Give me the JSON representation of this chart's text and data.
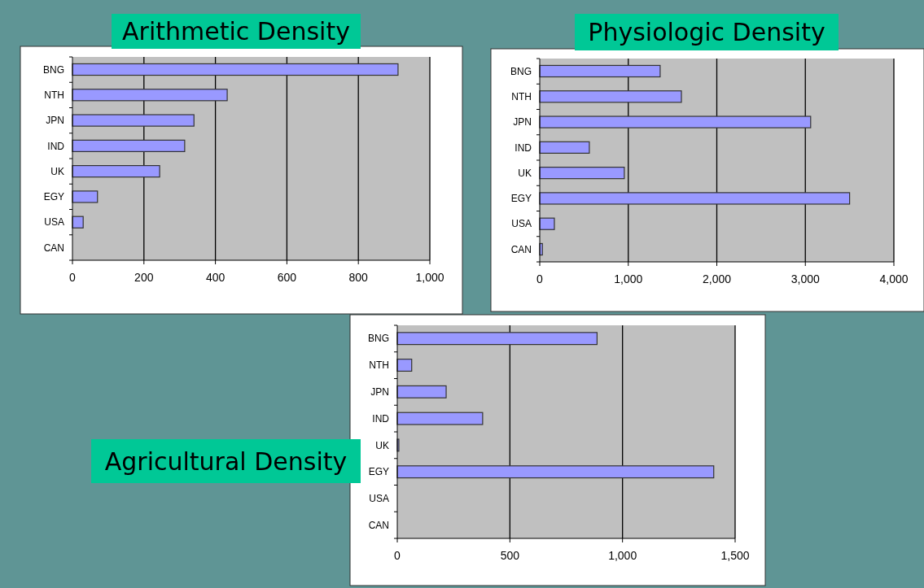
{
  "chart_data": [
    {
      "type": "bar",
      "orientation": "horizontal",
      "title": "Arithmetic Density",
      "categories": [
        "BNG",
        "NTH",
        "JPN",
        "IND",
        "UK",
        "EGY",
        "USA",
        "CAN"
      ],
      "values": [
        911,
        433,
        340,
        314,
        244,
        70,
        30,
        0
      ],
      "color": "#9999ff",
      "xlim": [
        0,
        1000
      ],
      "xticks": [
        0,
        200,
        400,
        600,
        800,
        {
          "value": 1000,
          "label": "1,000"
        }
      ],
      "grid": "x"
    },
    {
      "type": "bar",
      "orientation": "horizontal",
      "title": "Physiologic Density",
      "categories": [
        "BNG",
        "NTH",
        "JPN",
        "IND",
        "UK",
        "EGY",
        "USA",
        "CAN"
      ],
      "values": [
        1360,
        1600,
        3060,
        560,
        955,
        3500,
        165,
        30
      ],
      "color": "#9999ff",
      "xlim": [
        0,
        4000
      ],
      "xticks": [
        0,
        {
          "value": 1000,
          "label": "1,000"
        },
        {
          "value": 2000,
          "label": "2,000"
        },
        {
          "value": 3000,
          "label": "3,000"
        },
        {
          "value": 4000,
          "label": "4,000"
        }
      ],
      "grid": "x"
    },
    {
      "type": "bar",
      "orientation": "horizontal",
      "title": "Agricultural Density",
      "categories": [
        "BNG",
        "NTH",
        "JPN",
        "IND",
        "UK",
        "EGY",
        "USA",
        "CAN"
      ],
      "values": [
        887,
        64,
        217,
        379,
        7,
        1405,
        0,
        0
      ],
      "color": "#9999ff",
      "xlim": [
        0,
        1500
      ],
      "xticks": [
        0,
        500,
        {
          "value": 1000,
          "label": "1,000"
        },
        {
          "value": 1500,
          "label": "1,500"
        }
      ],
      "grid": "x"
    }
  ]
}
